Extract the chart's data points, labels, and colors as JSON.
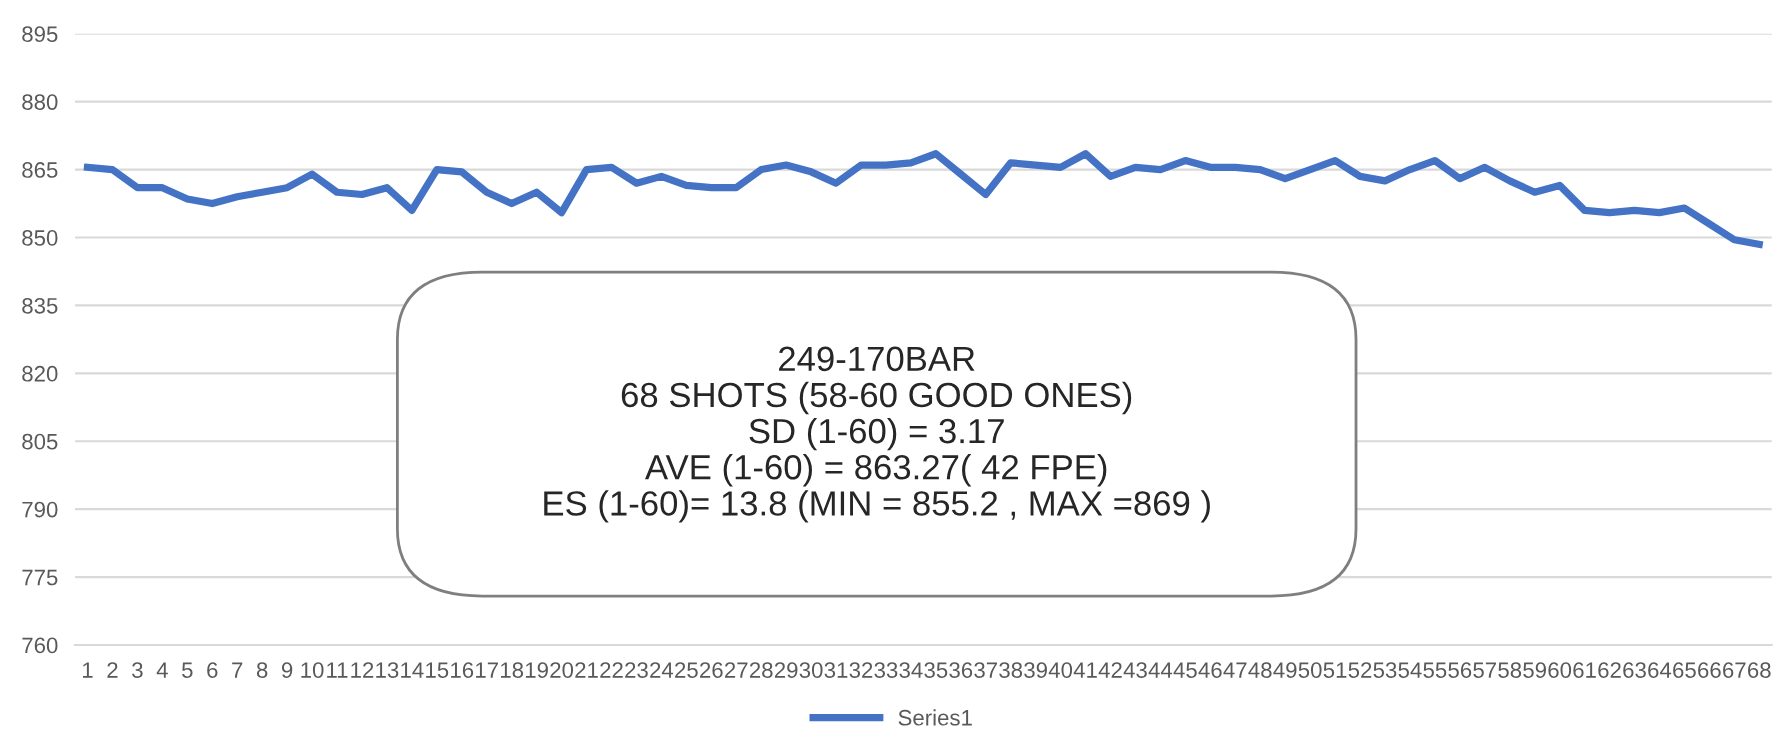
{
  "chart_data": {
    "type": "line",
    "categories": [
      "1",
      "2",
      "3",
      "4",
      "5",
      "6",
      "7",
      "8",
      "9",
      "10",
      "11",
      "12",
      "13",
      "14",
      "15",
      "16",
      "17",
      "18",
      "19",
      "20",
      "21",
      "22",
      "23",
      "24",
      "25",
      "26",
      "27",
      "28",
      "29",
      "30",
      "31",
      "32",
      "33",
      "34",
      "35",
      "36",
      "37",
      "38",
      "39",
      "40",
      "41",
      "42",
      "43",
      "44",
      "45",
      "46",
      "47",
      "48",
      "49",
      "50",
      "51",
      "52",
      "53",
      "54",
      "55",
      "56",
      "57",
      "58",
      "59",
      "60",
      "61",
      "62",
      "63",
      "64",
      "65",
      "66",
      "67",
      "68"
    ],
    "series": [
      {
        "name": "Series1",
        "color": "#4472c4",
        "values": [
          865.5,
          865,
          861,
          861,
          858.5,
          857.5,
          859,
          860,
          861,
          864,
          860,
          859.5,
          861,
          856,
          865,
          864.5,
          860,
          857.5,
          860,
          855.5,
          865,
          865.5,
          862,
          863.5,
          861.5,
          861,
          861,
          865,
          866,
          864.5,
          862,
          866,
          866,
          866.5,
          868.5,
          864,
          859.5,
          866.5,
          866,
          865.5,
          868.5,
          863.5,
          865.5,
          865,
          867,
          865.5,
          865.5,
          865,
          863,
          865,
          867,
          863.5,
          862.5,
          865,
          867,
          863,
          865.5,
          862.5,
          860,
          861.5,
          856,
          855.5,
          856,
          855.5,
          856.5,
          853,
          849.5,
          848.5
        ]
      }
    ],
    "ylim": [
      760,
      895
    ],
    "yticks": [
      760,
      775,
      790,
      805,
      820,
      835,
      850,
      865,
      880,
      895
    ],
    "grid": "y",
    "legend": "bottom",
    "marker": "none",
    "line_style": "solid",
    "annotations": [
      "249-170BAR\n68 SHOTS (58-60 GOOD ONES)\nSD (1-60) = 3.17\nAVE (1-60) = 863.27( 42 FPE)\nES (1-60)= 13.8 (MIN = 855.2 , MAX =869 )"
    ]
  }
}
